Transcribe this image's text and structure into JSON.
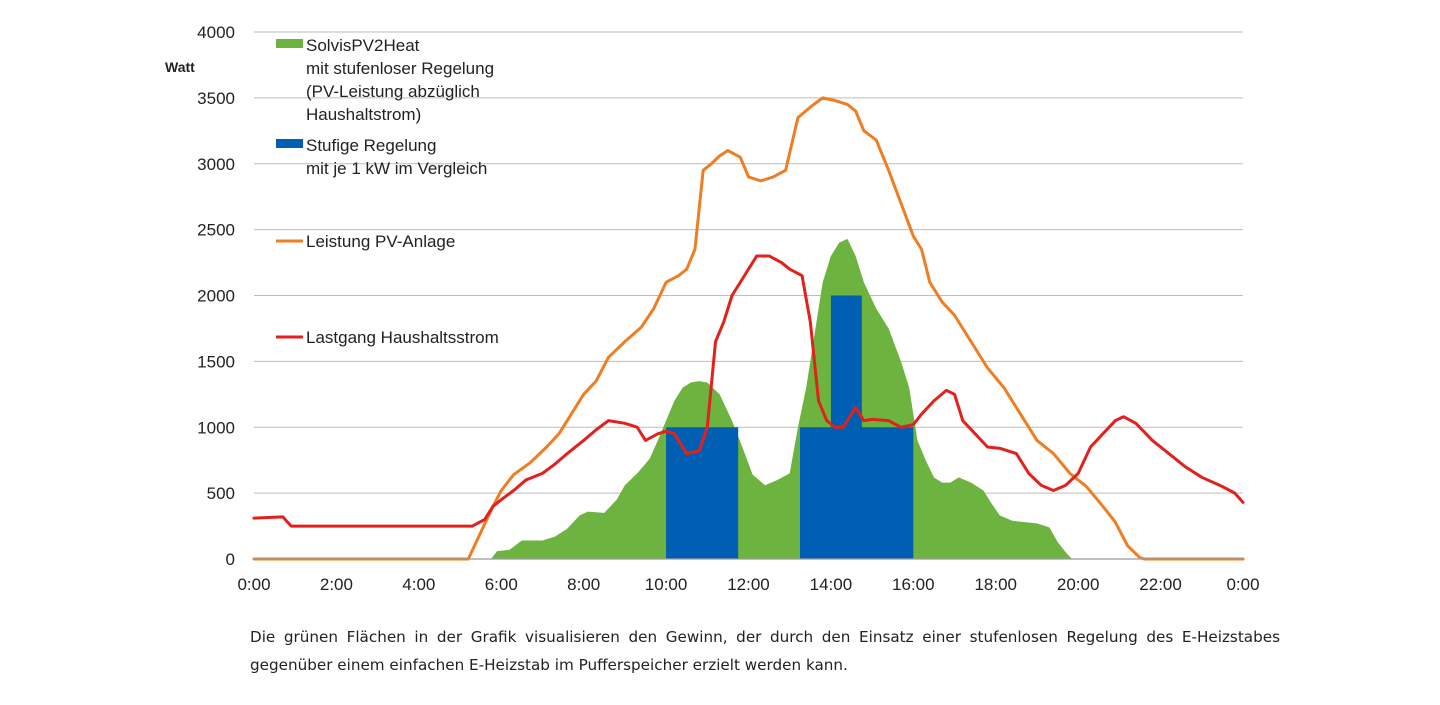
{
  "chart_data": {
    "type": "area",
    "ylabel": "Watt",
    "xlabel": "",
    "ylim": [
      0,
      4000
    ],
    "y_ticks": [
      "0",
      "500",
      "1000",
      "1500",
      "2000",
      "2500",
      "3000",
      "3500",
      "4000"
    ],
    "x_ticks": [
      "0:00",
      "2:00",
      "4:00",
      "6:00",
      "8:00",
      "10:00",
      "12:00",
      "14:00",
      "16:00",
      "18:00",
      "20:00",
      "22:00",
      "0:00"
    ],
    "x_range_hours": [
      0,
      24
    ],
    "grid": "horizontal",
    "legend_position": "top-left",
    "series": [
      {
        "name": "SolvisPV2Heat mit stufenloser Regelung (PV-Leistung abzüglich Haushaltstrom)",
        "type": "area",
        "color": "#6db33f",
        "points": [
          [
            5.75,
            0
          ],
          [
            5.9,
            60
          ],
          [
            6.2,
            70
          ],
          [
            6.5,
            140
          ],
          [
            7.0,
            140
          ],
          [
            7.3,
            170
          ],
          [
            7.6,
            230
          ],
          [
            7.9,
            330
          ],
          [
            8.1,
            360
          ],
          [
            8.5,
            350
          ],
          [
            8.8,
            450
          ],
          [
            9.0,
            560
          ],
          [
            9.3,
            650
          ],
          [
            9.6,
            760
          ],
          [
            9.8,
            900
          ],
          [
            10.0,
            1050
          ],
          [
            10.2,
            1200
          ],
          [
            10.4,
            1300
          ],
          [
            10.6,
            1340
          ],
          [
            10.8,
            1350
          ],
          [
            11.0,
            1340
          ],
          [
            11.3,
            1250
          ],
          [
            11.6,
            1050
          ],
          [
            11.85,
            850
          ],
          [
            12.1,
            640
          ],
          [
            12.4,
            560
          ],
          [
            12.7,
            600
          ],
          [
            13.0,
            650
          ],
          [
            13.2,
            1000
          ],
          [
            13.4,
            1300
          ],
          [
            13.6,
            1700
          ],
          [
            13.8,
            2100
          ],
          [
            14.0,
            2300
          ],
          [
            14.2,
            2400
          ],
          [
            14.4,
            2430
          ],
          [
            14.6,
            2300
          ],
          [
            14.8,
            2100
          ],
          [
            15.1,
            1900
          ],
          [
            15.4,
            1750
          ],
          [
            15.7,
            1500
          ],
          [
            15.9,
            1300
          ],
          [
            16.1,
            900
          ],
          [
            16.3,
            750
          ],
          [
            16.5,
            620
          ],
          [
            16.7,
            580
          ],
          [
            16.9,
            580
          ],
          [
            17.1,
            620
          ],
          [
            17.4,
            580
          ],
          [
            17.7,
            520
          ],
          [
            17.9,
            420
          ],
          [
            18.1,
            330
          ],
          [
            18.4,
            290
          ],
          [
            18.7,
            280
          ],
          [
            19.0,
            270
          ],
          [
            19.3,
            240
          ],
          [
            19.5,
            130
          ],
          [
            19.7,
            50
          ],
          [
            19.85,
            0
          ]
        ]
      },
      {
        "name": "Stufige Regelung mit  je 1 kW im Vergleich",
        "type": "step-area",
        "color": "#005fb2",
        "points": [
          [
            10.0,
            0
          ],
          [
            10.0,
            1000
          ],
          [
            11.75,
            1000
          ],
          [
            11.75,
            0
          ],
          [
            13.25,
            0
          ],
          [
            13.25,
            1000
          ],
          [
            14.0,
            1000
          ],
          [
            14.0,
            2000
          ],
          [
            14.75,
            2000
          ],
          [
            14.75,
            1000
          ],
          [
            16.0,
            1000
          ],
          [
            16.0,
            0
          ]
        ]
      },
      {
        "name": "Leistung PV-Anlage",
        "type": "line",
        "color": "#ef7d22",
        "points": [
          [
            0,
            0
          ],
          [
            5.2,
            0
          ],
          [
            5.5,
            200
          ],
          [
            5.8,
            400
          ],
          [
            6.0,
            520
          ],
          [
            6.3,
            640
          ],
          [
            6.7,
            730
          ],
          [
            7.1,
            850
          ],
          [
            7.4,
            950
          ],
          [
            7.7,
            1100
          ],
          [
            8.0,
            1250
          ],
          [
            8.3,
            1350
          ],
          [
            8.6,
            1530
          ],
          [
            9.0,
            1650
          ],
          [
            9.4,
            1760
          ],
          [
            9.7,
            1900
          ],
          [
            10.0,
            2100
          ],
          [
            10.3,
            2150
          ],
          [
            10.5,
            2200
          ],
          [
            10.7,
            2350
          ],
          [
            10.9,
            2950
          ],
          [
            11.1,
            3000
          ],
          [
            11.3,
            3060
          ],
          [
            11.5,
            3100
          ],
          [
            11.8,
            3050
          ],
          [
            12.0,
            2900
          ],
          [
            12.3,
            2870
          ],
          [
            12.6,
            2900
          ],
          [
            12.9,
            2950
          ],
          [
            13.2,
            3350
          ],
          [
            13.5,
            3430
          ],
          [
            13.8,
            3500
          ],
          [
            14.1,
            3480
          ],
          [
            14.4,
            3450
          ],
          [
            14.6,
            3400
          ],
          [
            14.8,
            3250
          ],
          [
            15.1,
            3180
          ],
          [
            15.4,
            2950
          ],
          [
            15.7,
            2700
          ],
          [
            16.0,
            2450
          ],
          [
            16.2,
            2350
          ],
          [
            16.4,
            2100
          ],
          [
            16.7,
            1950
          ],
          [
            17.0,
            1850
          ],
          [
            17.4,
            1650
          ],
          [
            17.8,
            1450
          ],
          [
            18.2,
            1300
          ],
          [
            18.6,
            1100
          ],
          [
            19.0,
            900
          ],
          [
            19.4,
            800
          ],
          [
            19.8,
            650
          ],
          [
            20.2,
            550
          ],
          [
            20.6,
            400
          ],
          [
            20.9,
            280
          ],
          [
            21.2,
            100
          ],
          [
            21.5,
            10
          ],
          [
            21.6,
            0
          ],
          [
            24,
            0
          ]
        ]
      },
      {
        "name": "Lastgang Haushaltsstrom",
        "type": "line",
        "color": "#e2211c",
        "points": [
          [
            0,
            310
          ],
          [
            0.7,
            320
          ],
          [
            0.9,
            250
          ],
          [
            1.1,
            250
          ],
          [
            5.3,
            250
          ],
          [
            5.6,
            300
          ],
          [
            5.8,
            400
          ],
          [
            6.0,
            450
          ],
          [
            6.3,
            520
          ],
          [
            6.6,
            600
          ],
          [
            7.0,
            650
          ],
          [
            7.3,
            720
          ],
          [
            7.6,
            800
          ],
          [
            8.0,
            900
          ],
          [
            8.3,
            980
          ],
          [
            8.6,
            1050
          ],
          [
            9.0,
            1030
          ],
          [
            9.3,
            1000
          ],
          [
            9.5,
            900
          ],
          [
            9.8,
            950
          ],
          [
            10.0,
            970
          ],
          [
            10.2,
            950
          ],
          [
            10.5,
            800
          ],
          [
            10.8,
            820
          ],
          [
            11.0,
            1000
          ],
          [
            11.2,
            1650
          ],
          [
            11.4,
            1800
          ],
          [
            11.6,
            2000
          ],
          [
            11.9,
            2150
          ],
          [
            12.2,
            2300
          ],
          [
            12.5,
            2300
          ],
          [
            12.8,
            2250
          ],
          [
            13.0,
            2200
          ],
          [
            13.3,
            2150
          ],
          [
            13.5,
            1800
          ],
          [
            13.7,
            1200
          ],
          [
            13.9,
            1050
          ],
          [
            14.1,
            1000
          ],
          [
            14.3,
            1000
          ],
          [
            14.6,
            1150
          ],
          [
            14.8,
            1050
          ],
          [
            15.0,
            1060
          ],
          [
            15.4,
            1050
          ],
          [
            15.7,
            1000
          ],
          [
            16.0,
            1020
          ],
          [
            16.2,
            1100
          ],
          [
            16.5,
            1200
          ],
          [
            16.8,
            1280
          ],
          [
            17.0,
            1250
          ],
          [
            17.2,
            1050
          ],
          [
            17.5,
            950
          ],
          [
            17.8,
            850
          ],
          [
            18.1,
            840
          ],
          [
            18.5,
            800
          ],
          [
            18.8,
            650
          ],
          [
            19.1,
            560
          ],
          [
            19.4,
            520
          ],
          [
            19.7,
            560
          ],
          [
            20.0,
            650
          ],
          [
            20.3,
            850
          ],
          [
            20.6,
            950
          ],
          [
            20.9,
            1050
          ],
          [
            21.1,
            1080
          ],
          [
            21.4,
            1030
          ],
          [
            21.8,
            900
          ],
          [
            22.2,
            800
          ],
          [
            22.6,
            700
          ],
          [
            23.0,
            620
          ],
          [
            23.5,
            550
          ],
          [
            23.8,
            500
          ],
          [
            24.0,
            430
          ]
        ]
      }
    ]
  },
  "legend": [
    {
      "lines": [
        "SolvisPV2Heat",
        "mit stufenloser Regelung",
        "(PV-Leistung abzüglich",
        "Haushaltstrom)"
      ],
      "color": "#6db33f"
    },
    {
      "lines": [
        "Stufige Regelung",
        "mit  je 1 kW im Vergleich"
      ],
      "color": "#005fb2"
    },
    {
      "lines": [
        "Leistung PV-Anlage"
      ],
      "color": "#ef7d22"
    },
    {
      "lines": [
        "Lastgang Haushaltsstrom"
      ],
      "color": "#e2211c"
    }
  ],
  "caption": "Die grünen Flächen in der Grafik visualisieren den Gewinn, der durch den Einsatz einer stufenlosen Regelung des E-Heizstabes gegenüber einem einfachen E-Heizstab im Pufferspeicher erzielt werden kann."
}
